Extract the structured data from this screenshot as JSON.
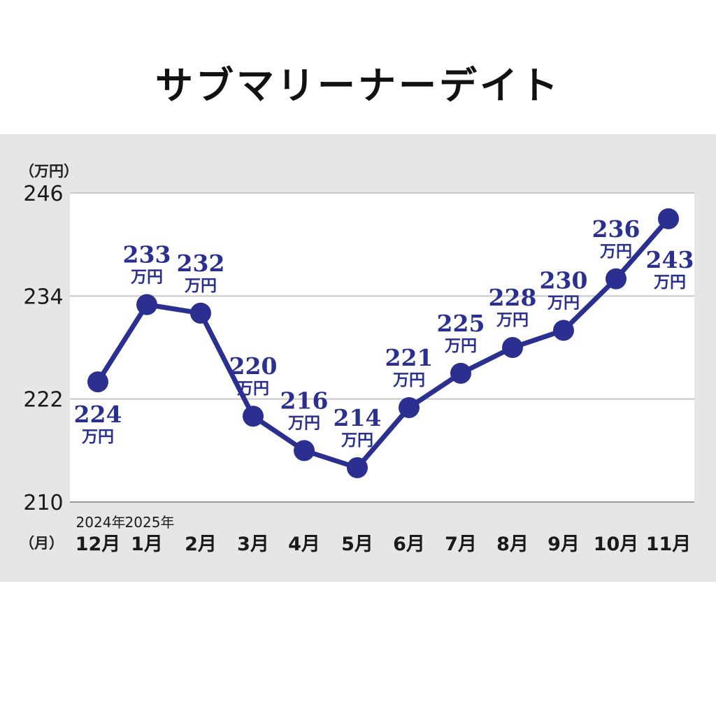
{
  "chart_data": {
    "type": "line",
    "title": "サブマリーナーデイト",
    "ylabel": "（万円）",
    "xlabel": "（月）",
    "ylim": [
      210,
      246
    ],
    "yticks": [
      "210",
      "222",
      "234",
      "246"
    ],
    "year_labels": [
      {
        "index": 0,
        "text": "2024年"
      },
      {
        "index": 1,
        "text": "2025年"
      }
    ],
    "categories": [
      "12月",
      "1月",
      "2月",
      "3月",
      "4月",
      "5月",
      "6月",
      "7月",
      "8月",
      "9月",
      "10月",
      "11月"
    ],
    "values": [
      224,
      233,
      232,
      220,
      216,
      214,
      221,
      225,
      228,
      230,
      236,
      243
    ],
    "data_labels": [
      "224",
      "233",
      "232",
      "220",
      "216",
      "214",
      "221",
      "225",
      "228",
      "230",
      "236",
      "243"
    ],
    "unit_label": "万円",
    "grid": true,
    "colors": {
      "line": "#2b2f8f",
      "label": "#2b2f8f",
      "grid": "#c8c8c8",
      "plot_bg": "#ffffff",
      "panel_bg": "#e6e6e6"
    }
  }
}
